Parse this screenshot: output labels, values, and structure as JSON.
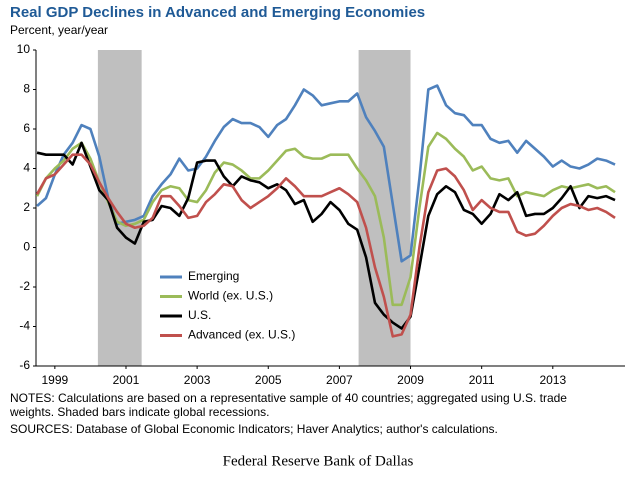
{
  "chart_data": {
    "type": "line",
    "title": "Real GDP Declines in Advanced and Emerging Economies",
    "subtitle": "Percent, year/year",
    "x": [
      1998.5,
      1998.75,
      1999,
      1999.25,
      1999.5,
      1999.75,
      2000,
      2000.25,
      2000.5,
      2000.75,
      2001,
      2001.25,
      2001.5,
      2001.75,
      2002,
      2002.25,
      2002.5,
      2002.75,
      2003,
      2003.25,
      2003.5,
      2003.75,
      2004,
      2004.25,
      2004.5,
      2004.75,
      2005,
      2005.25,
      2005.5,
      2005.75,
      2006,
      2006.25,
      2006.5,
      2006.75,
      2007,
      2007.25,
      2007.5,
      2007.75,
      2008,
      2008.25,
      2008.5,
      2008.75,
      2009,
      2009.25,
      2009.5,
      2009.75,
      2010,
      2010.25,
      2010.5,
      2010.75,
      2011,
      2011.25,
      2011.5,
      2011.75,
      2012,
      2012.25,
      2012.5,
      2012.75,
      2013,
      2013.25,
      2013.5,
      2013.75,
      2014,
      2014.25,
      2014.5,
      2014.75
    ],
    "series": [
      {
        "name": "Emerging",
        "color": "#4f81bd",
        "values": [
          2.1,
          2.5,
          3.7,
          4.7,
          5.3,
          6.2,
          6.0,
          4.6,
          2.5,
          1.2,
          1.3,
          1.4,
          1.6,
          2.6,
          3.2,
          3.7,
          4.5,
          3.9,
          4.0,
          4.6,
          5.4,
          6.1,
          6.5,
          6.3,
          6.3,
          6.1,
          5.6,
          6.2,
          6.5,
          7.2,
          8.0,
          7.7,
          7.2,
          7.3,
          7.4,
          7.4,
          7.8,
          6.6,
          5.9,
          5.1,
          2.2,
          -0.7,
          -0.4,
          3.5,
          8.0,
          8.2,
          7.2,
          6.8,
          6.7,
          6.2,
          6.2,
          5.5,
          5.3,
          5.4,
          4.8,
          5.4,
          5.0,
          4.6,
          4.1,
          4.4,
          4.1,
          4.0,
          4.2,
          4.5,
          4.4,
          4.2
        ]
      },
      {
        "name": "World (ex. U.S.)",
        "color": "#9bbb59",
        "values": [
          2.6,
          3.5,
          4.0,
          4.4,
          5.0,
          5.3,
          4.5,
          3.3,
          2.3,
          1.3,
          1.1,
          1.2,
          1.4,
          2.3,
          2.9,
          3.1,
          3.0,
          2.4,
          2.3,
          2.9,
          3.8,
          4.3,
          4.2,
          3.9,
          3.5,
          3.5,
          3.9,
          4.4,
          4.9,
          5.0,
          4.6,
          4.5,
          4.5,
          4.7,
          4.7,
          4.7,
          4.0,
          3.4,
          2.6,
          0.5,
          -2.9,
          -2.9,
          -1.5,
          2.0,
          5.1,
          5.8,
          5.5,
          5.0,
          4.6,
          3.9,
          4.1,
          3.5,
          3.4,
          3.5,
          2.6,
          2.8,
          2.7,
          2.6,
          2.9,
          3.1,
          3.0,
          3.1,
          3.2,
          3.0,
          3.1,
          2.8
        ]
      },
      {
        "name": "U.S.",
        "color": "#000000",
        "values": [
          4.8,
          4.7,
          4.7,
          4.7,
          4.2,
          5.3,
          4.1,
          2.9,
          2.4,
          1.0,
          0.5,
          0.2,
          1.3,
          1.4,
          2.1,
          2.0,
          1.6,
          2.5,
          4.3,
          4.4,
          4.4,
          3.6,
          3.1,
          3.6,
          3.4,
          3.3,
          3.0,
          3.2,
          2.9,
          2.2,
          2.4,
          1.3,
          1.7,
          2.3,
          1.9,
          1.2,
          0.9,
          -0.5,
          -2.8,
          -3.4,
          -3.8,
          -4.1,
          -3.5,
          -1.0,
          1.6,
          2.7,
          3.1,
          2.8,
          1.9,
          1.7,
          1.2,
          1.7,
          2.7,
          2.4,
          2.8,
          1.6,
          1.7,
          1.7,
          2.0,
          2.5,
          3.1,
          2.0,
          2.6,
          2.5,
          2.6,
          2.4
        ]
      },
      {
        "name": "Advanced (ex. U.S.)",
        "color": "#c0504d",
        "values": [
          2.7,
          3.5,
          3.7,
          4.2,
          4.7,
          4.7,
          4.2,
          3.3,
          2.5,
          1.8,
          1.2,
          1.0,
          1.1,
          1.5,
          2.6,
          2.6,
          2.1,
          1.5,
          1.6,
          2.3,
          2.7,
          3.2,
          3.1,
          2.4,
          2.0,
          2.3,
          2.6,
          3.0,
          3.5,
          3.1,
          2.6,
          2.6,
          2.6,
          2.8,
          3.0,
          2.7,
          2.3,
          1.0,
          -1.0,
          -2.5,
          -4.5,
          -4.4,
          -3.4,
          0.0,
          2.8,
          3.9,
          4.0,
          3.6,
          2.9,
          1.9,
          2.4,
          2.0,
          1.8,
          1.8,
          0.8,
          0.6,
          0.7,
          1.1,
          1.6,
          2.0,
          2.2,
          2.1,
          1.9,
          2.0,
          1.8,
          1.5
        ]
      }
    ],
    "shaded_periods": [
      [
        2000.21,
        2001.44
      ],
      [
        2007.54,
        2009.0
      ]
    ],
    "shade_color": "#bfbfbf",
    "xlim": [
      1998.47,
      2015.03
    ],
    "xticks": [
      1999,
      2001,
      2003,
      2005,
      2007,
      2009,
      2011,
      2013
    ],
    "ylim": [
      -6,
      10
    ],
    "yticks": [
      -6,
      -4,
      -2,
      0,
      2,
      4,
      6,
      8,
      10
    ],
    "notes": [
      "NOTES: Calculations are based on a representative sample of 40 countries; aggregated using U.S. trade",
      "weights. Shaded bars indicate global recessions."
    ],
    "sources": "SOURCES: Database of Global Economic Indicators; Haver Analytics; author's calculations.",
    "footer": "Federal Reserve Bank of Dallas"
  }
}
